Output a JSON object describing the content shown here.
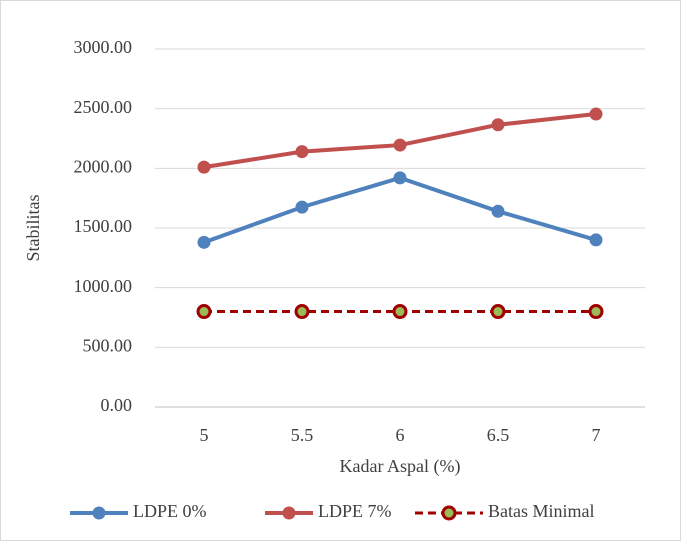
{
  "chart_data": {
    "type": "line",
    "y_label": "Stabilitas",
    "x_label": "Kadar Aspal (%)",
    "categories": [
      "5",
      "5.5",
      "6",
      "6.5",
      "7"
    ],
    "series": [
      {
        "name": "LDPE 0%",
        "color": "#4f81bd",
        "values": [
          1380,
          1675,
          1920,
          1640,
          1400
        ]
      },
      {
        "name": "LDPE 7%",
        "color": "#c0504d",
        "values": [
          2010,
          2140,
          2195,
          2365,
          2455
        ]
      },
      {
        "name": "Batas Minimal",
        "color": "#a00000",
        "style": "dashed",
        "marker_fill": "#9bbb59",
        "values": [
          800,
          800,
          800,
          800,
          800
        ]
      }
    ],
    "ylim": [
      0,
      3000
    ],
    "yticks": [
      {
        "value": 0,
        "label": "0.00"
      },
      {
        "value": 500,
        "label": "500.00"
      },
      {
        "value": 1000,
        "label": "1000.00"
      },
      {
        "value": 1500,
        "label": "1500.00"
      },
      {
        "value": 2000,
        "label": "2000.00"
      },
      {
        "value": 2500,
        "label": "2500.00"
      },
      {
        "value": 3000,
        "label": "3000.00"
      }
    ],
    "grid": true,
    "legend": "bottom"
  }
}
